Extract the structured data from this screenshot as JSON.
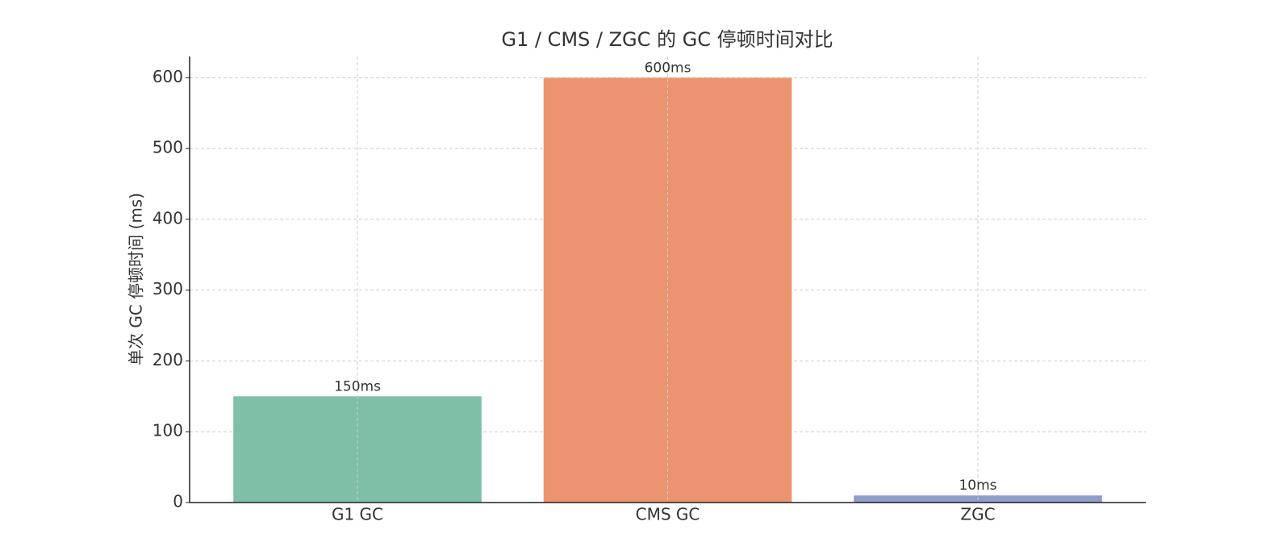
{
  "chart_data": {
    "type": "bar",
    "title": "G1 / CMS / ZGC 的 GC 停顿时间对比",
    "y_label": "单次 GC 停顿时间 (ms)",
    "categories": [
      "G1 GC",
      "CMS GC",
      "ZGC"
    ],
    "values": [
      150,
      600,
      10
    ],
    "value_labels": [
      "150ms",
      "600ms",
      "10ms"
    ],
    "colors": [
      "#7fbfa7",
      "#ec9470",
      "#8e9cc8"
    ],
    "ylim": [
      0,
      630
    ],
    "yticks": [
      0,
      100,
      200,
      300,
      400,
      500,
      600
    ],
    "grid": true
  }
}
